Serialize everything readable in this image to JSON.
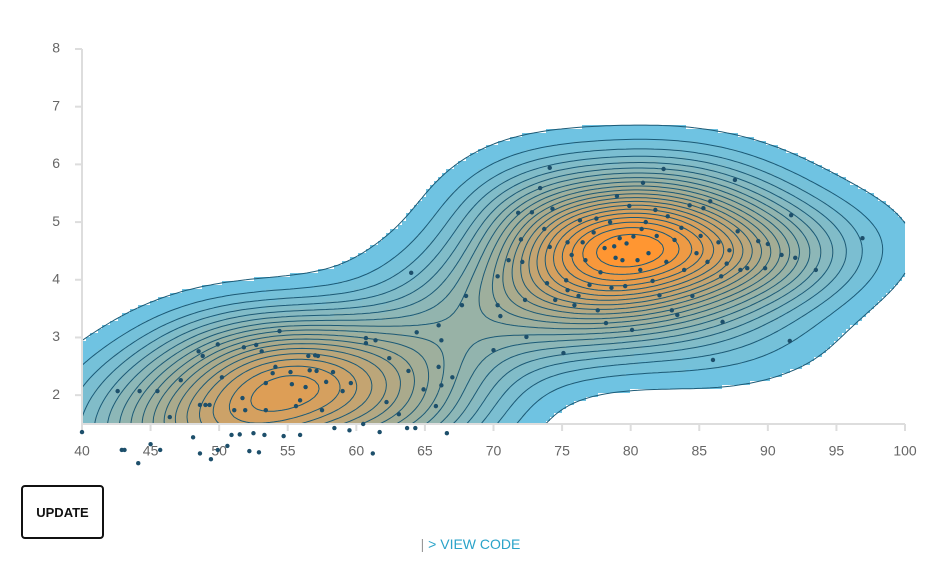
{
  "chart_data": {
    "type": "contour",
    "xlim": [
      40,
      100
    ],
    "xticks": [
      40,
      45,
      50,
      55,
      60,
      65,
      70,
      75,
      80,
      85,
      90,
      95,
      100
    ],
    "ylim": [
      1.5,
      8
    ],
    "yticks": [
      2,
      3,
      4,
      5,
      6,
      7,
      8
    ],
    "point_color": "#1d4f6b",
    "contour_stroke": "#1c5a76",
    "x": [
      40,
      42.6,
      42.9,
      43.1,
      44.2,
      44.1,
      45.0,
      45.5,
      45.7,
      46.4,
      47.2,
      48.1,
      48.5,
      48.6,
      48.8,
      48.6,
      49.0,
      49.3,
      49.4,
      49.9,
      49.9,
      50.2,
      50.6,
      50.9,
      51.1,
      51.5,
      51.8,
      51.7,
      51.9,
      52.2,
      52.5,
      52.7,
      52.9,
      53.1,
      53.4,
      53.4,
      53.3,
      53.9,
      54.1,
      54.4,
      54.7,
      55.2,
      55.3,
      55.6,
      55.9,
      55.9,
      56.3,
      56.5,
      56.6,
      57.0,
      57.1,
      57.2,
      57.5,
      57.8,
      58.3,
      58.4,
      59.0,
      59.5,
      59.6,
      60.5,
      60.7,
      60.7,
      61.2,
      61.4,
      61.7,
      62.2,
      62.4,
      63.1,
      63.7,
      64.0,
      63.8,
      64.3,
      64.4,
      64.9,
      65.8,
      66.0,
      66.2,
      66.0,
      66.2,
      66.6,
      67.0,
      67.7,
      68.0,
      70.0,
      70.3,
      70.3,
      70.5,
      71.1,
      71.8,
      72.0,
      72.1,
      72.3,
      72.4,
      72.8,
      73.4,
      73.7,
      73.9,
      74.1,
      74.1,
      74.3,
      74.5,
      75.1,
      75.3,
      75.4,
      75.4,
      75.7,
      75.9,
      76.2,
      76.3,
      76.5,
      76.7,
      77.0,
      77.3,
      77.5,
      77.6,
      77.8,
      78.1,
      78.2,
      78.5,
      78.6,
      78.8,
      78.9,
      79.0,
      79.2,
      79.4,
      79.6,
      79.7,
      79.9,
      80.1,
      80.2,
      80.5,
      80.7,
      80.8,
      80.9,
      81.1,
      81.3,
      81.6,
      81.8,
      81.9,
      82.1,
      82.4,
      82.6,
      82.7,
      83.0,
      83.2,
      83.4,
      83.7,
      83.9,
      84.3,
      84.5,
      84.8,
      85.1,
      85.3,
      85.6,
      85.8,
      86.0,
      86.4,
      86.6,
      86.7,
      87.0,
      87.2,
      87.6,
      87.8,
      88.0,
      88.5,
      89.3,
      89.8,
      90.0,
      91.0,
      91.6,
      91.7,
      92.0,
      93.5,
      96.9
    ],
    "values": [
      1.36,
      2.07,
      1.05,
      1.05,
      2.07,
      0.82,
      1.15,
      2.07,
      1.05,
      1.62,
      2.26,
      1.27,
      2.76,
      1.83,
      2.68,
      0.99,
      1.83,
      1.83,
      0.89,
      2.88,
      1.05,
      2.31,
      1.12,
      1.31,
      1.74,
      1.32,
      2.83,
      1.95,
      1.74,
      1.03,
      1.34,
      2.87,
      1.01,
      2.76,
      2.21,
      1.74,
      1.31,
      2.38,
      2.49,
      3.11,
      1.29,
      2.4,
      2.19,
      1.81,
      1.31,
      1.91,
      2.14,
      2.68,
      2.43,
      2.69,
      2.42,
      2.68,
      1.74,
      2.23,
      2.4,
      1.43,
      2.07,
      1.39,
      2.21,
      1.5,
      2.9,
      2.99,
      0.99,
      2.95,
      1.36,
      1.88,
      2.64,
      1.67,
      1.43,
      4.12,
      2.42,
      1.43,
      3.09,
      2.1,
      1.81,
      3.21,
      2.95,
      2.49,
      2.17,
      1.34,
      2.31,
      3.56,
      3.72,
      2.78,
      4.06,
      3.56,
      3.37,
      4.34,
      5.16,
      4.7,
      4.31,
      3.65,
      3.01,
      5.17,
      5.59,
      4.88,
      3.94,
      5.94,
      4.57,
      5.23,
      3.65,
      2.73,
      3.99,
      4.65,
      3.82,
      4.43,
      3.56,
      3.72,
      5.03,
      4.65,
      4.34,
      3.91,
      4.82,
      5.06,
      3.47,
      4.13,
      4.55,
      3.25,
      5.0,
      3.86,
      4.58,
      4.38,
      5.45,
      4.72,
      4.34,
      3.89,
      4.63,
      5.28,
      3.13,
      4.75,
      4.34,
      4.17,
      4.88,
      5.68,
      5.0,
      4.46,
      3.98,
      5.21,
      4.76,
      3.73,
      5.92,
      4.31,
      5.1,
      3.47,
      4.69,
      3.39,
      4.9,
      4.17,
      5.29,
      3.72,
      4.46,
      4.76,
      5.24,
      4.31,
      5.36,
      2.61,
      4.65,
      4.06,
      3.27,
      4.28,
      4.51,
      5.73,
      4.84,
      4.17,
      4.2,
      4.67,
      4.2,
      4.62,
      4.43,
      2.94,
      5.12,
      4.38,
      4.17,
      4.72
    ]
  },
  "ui": {
    "button": "UPDATE",
    "link_separator": "|",
    "link": "> VIEW CODE"
  }
}
